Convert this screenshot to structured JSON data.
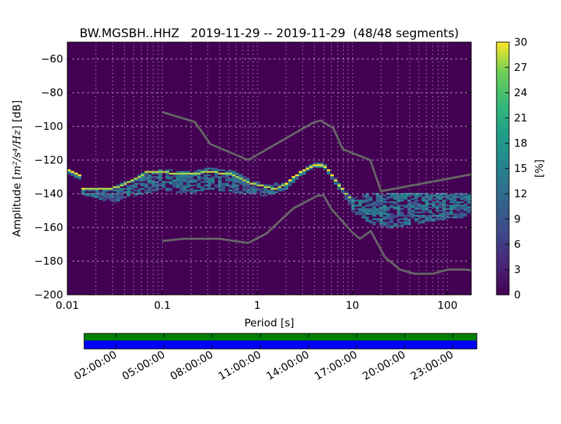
{
  "chart_data": {
    "type": "heatmap",
    "title": "BW.MGSBH..HHZ   2019-11-29 -- 2019-11-29  (48/48 segments)",
    "xlabel": "Period [s]",
    "ylabel": {
      "prefix": "Amplitude [",
      "math": "m²/s⁴/Hz",
      "suffix": "] [dB]"
    },
    "xscale": "log",
    "xlim": [
      0.01,
      178
    ],
    "ylim": [
      -200,
      -50
    ],
    "xticks": [
      {
        "v": 0.01,
        "label": "0.01"
      },
      {
        "v": 0.1,
        "label": "0.1"
      },
      {
        "v": 1,
        "label": "1"
      },
      {
        "v": 10,
        "label": "10"
      },
      {
        "v": 100,
        "label": "100"
      }
    ],
    "yticks": [
      {
        "v": -60,
        "label": "−60"
      },
      {
        "v": -80,
        "label": "−80"
      },
      {
        "v": -100,
        "label": "−100"
      },
      {
        "v": -120,
        "label": "−120"
      },
      {
        "v": -140,
        "label": "−140"
      },
      {
        "v": -160,
        "label": "−160"
      },
      {
        "v": -180,
        "label": "−180"
      },
      {
        "v": -200,
        "label": "−200"
      }
    ],
    "grid": true,
    "colorbar": {
      "label": "[%]",
      "range": [
        0,
        30
      ],
      "colormap": "viridis",
      "ticks": [
        "0",
        "3",
        "6",
        "9",
        "12",
        "15",
        "18",
        "21",
        "24",
        "27",
        "30"
      ]
    },
    "psd_mode": [
      [
        0.01,
        -125
      ],
      [
        0.014,
        -129
      ],
      [
        0.0145,
        -137
      ],
      [
        0.02,
        -137.5
      ],
      [
        0.03,
        -137
      ],
      [
        0.04,
        -134
      ],
      [
        0.06,
        -129
      ],
      [
        0.07,
        -127
      ],
      [
        0.1,
        -127
      ],
      [
        0.13,
        -128
      ],
      [
        0.2,
        -128
      ],
      [
        0.3,
        -127
      ],
      [
        0.5,
        -128
      ],
      [
        0.8,
        -133
      ],
      [
        1.2,
        -136
      ],
      [
        1.6,
        -137
      ],
      [
        2,
        -134
      ],
      [
        3,
        -126
      ],
      [
        4,
        -123
      ],
      [
        5,
        -123
      ],
      [
        6,
        -128
      ],
      [
        7,
        -134
      ],
      [
        10,
        -144
      ],
      [
        15,
        -148
      ],
      [
        20,
        -147
      ],
      [
        50,
        -146
      ],
      [
        178,
        -146
      ]
    ],
    "psd_band_top": [
      [
        0.01,
        -125
      ],
      [
        0.014,
        -129
      ],
      [
        0.0145,
        -137
      ],
      [
        0.03,
        -137
      ],
      [
        0.06,
        -128
      ],
      [
        0.1,
        -126
      ],
      [
        0.2,
        -127
      ],
      [
        0.3,
        -125
      ],
      [
        0.5,
        -126
      ],
      [
        0.8,
        -131
      ],
      [
        1.2,
        -135
      ],
      [
        2,
        -134
      ],
      [
        3,
        -126
      ],
      [
        4,
        -122
      ],
      [
        5,
        -122
      ],
      [
        6,
        -128
      ],
      [
        8,
        -137
      ],
      [
        10,
        -143
      ],
      [
        15,
        -140
      ],
      [
        30,
        -140
      ],
      [
        178,
        -140
      ]
    ],
    "psd_band_bottom": [
      [
        0.01,
        -127
      ],
      [
        0.014,
        -131
      ],
      [
        0.0145,
        -140
      ],
      [
        0.03,
        -145
      ],
      [
        0.05,
        -141
      ],
      [
        0.1,
        -137
      ],
      [
        0.2,
        -140
      ],
      [
        0.3,
        -137
      ],
      [
        0.5,
        -138
      ],
      [
        0.8,
        -140
      ],
      [
        1.2,
        -141
      ],
      [
        2,
        -137
      ],
      [
        3,
        -128
      ],
      [
        4,
        -124
      ],
      [
        5,
        -124
      ],
      [
        6,
        -130
      ],
      [
        8,
        -140
      ],
      [
        10,
        -150
      ],
      [
        15,
        -157
      ],
      [
        25,
        -160
      ],
      [
        50,
        -157
      ],
      [
        178,
        -153
      ]
    ],
    "noise_models": [
      {
        "name": "NHNM",
        "color": "#666666",
        "points": [
          [
            0.1,
            -91.5
          ],
          [
            0.22,
            -97.4
          ],
          [
            0.32,
            -110.5
          ],
          [
            0.8,
            -120
          ],
          [
            3.8,
            -98
          ],
          [
            4.6,
            -96.5
          ],
          [
            6.3,
            -101
          ],
          [
            7.9,
            -113.5
          ],
          [
            15.4,
            -120
          ],
          [
            20,
            -138.5
          ],
          [
            178,
            -128.5
          ]
        ]
      },
      {
        "name": "NLNM",
        "color": "#666666",
        "points": [
          [
            0.1,
            -168
          ],
          [
            0.17,
            -166.7
          ],
          [
            0.4,
            -166.7
          ],
          [
            0.8,
            -169.2
          ],
          [
            1.24,
            -163.7
          ],
          [
            2.4,
            -148.6
          ],
          [
            4.3,
            -141.1
          ],
          [
            5,
            -141.1
          ],
          [
            6,
            -149
          ],
          [
            10,
            -163
          ],
          [
            12,
            -166.7
          ],
          [
            15.6,
            -162.1
          ],
          [
            21.9,
            -177.5
          ],
          [
            31.6,
            -185
          ],
          [
            45,
            -187.5
          ],
          [
            70,
            -187.5
          ],
          [
            101,
            -185
          ],
          [
            154,
            -185
          ],
          [
            178,
            -185.5
          ]
        ]
      }
    ],
    "coverage": {
      "tick_labels": [
        "02:00:00",
        "05:00:00",
        "08:00:00",
        "11:00:00",
        "14:00:00",
        "17:00:00",
        "20:00:00",
        "23:00:00"
      ],
      "tick_hours": [
        2,
        5,
        8,
        11,
        14,
        17,
        20,
        23
      ],
      "range_hours": [
        0,
        24.5
      ],
      "data_color": "#008000",
      "processed_color": "#0000ff"
    }
  }
}
